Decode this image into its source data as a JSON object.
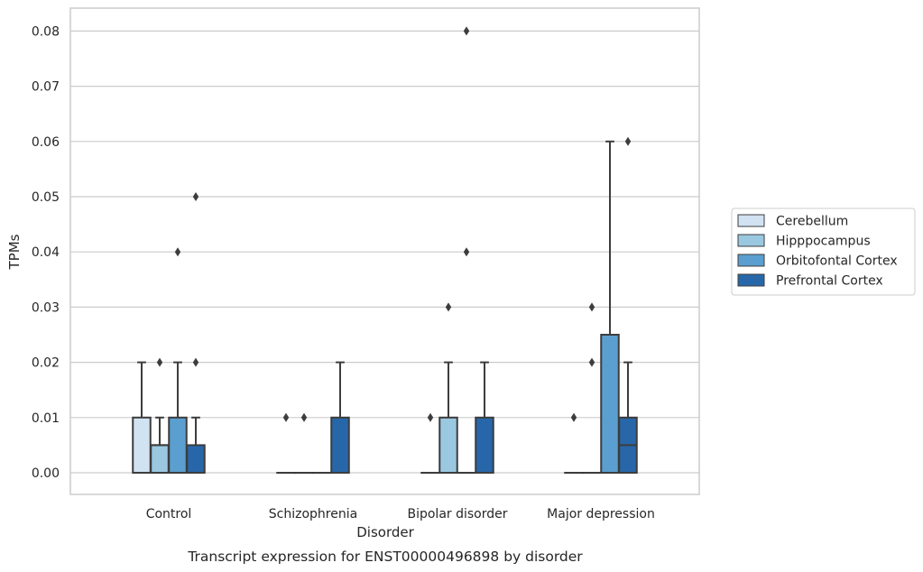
{
  "chart_data": {
    "type": "box",
    "xlabel": "Disorder",
    "ylabel": "TPMs",
    "caption": "Transcript expression for ENST00000496898 by disorder",
    "categories": [
      "Control",
      "Schizophrenia",
      "Bipolar disorder",
      "Major depression"
    ],
    "ylim": [
      -0.004,
      0.084
    ],
    "yticks": [
      0.0,
      0.01,
      0.02,
      0.03,
      0.04,
      0.05,
      0.06,
      0.07,
      0.08
    ],
    "ytick_labels": [
      "0.00",
      "0.01",
      "0.02",
      "0.03",
      "0.04",
      "0.05",
      "0.06",
      "0.07",
      "0.08"
    ],
    "grid": "horizontal",
    "legend_position": "right",
    "series": [
      {
        "name": "Cerebellum",
        "color": "#d1e2f2",
        "boxes": [
          {
            "q1": 0,
            "median": 0,
            "q3": 0.01,
            "whisker_low": 0,
            "whisker_high": 0.02,
            "outliers": []
          },
          {
            "q1": 0,
            "median": 0,
            "q3": 0,
            "whisker_low": 0,
            "whisker_high": 0,
            "outliers": [
              0.01
            ]
          },
          {
            "q1": 0,
            "median": 0,
            "q3": 0,
            "whisker_low": 0,
            "whisker_high": 0,
            "outliers": [
              0.01
            ]
          },
          {
            "q1": 0,
            "median": 0,
            "q3": 0,
            "whisker_low": 0,
            "whisker_high": 0,
            "outliers": [
              0.01
            ]
          }
        ]
      },
      {
        "name": "Hipppocampus",
        "color": "#9ac8e0",
        "boxes": [
          {
            "q1": 0,
            "median": 0.005,
            "q3": 0.005,
            "whisker_low": 0,
            "whisker_high": 0.01,
            "outliers": [
              0.02
            ]
          },
          {
            "q1": 0,
            "median": 0,
            "q3": 0,
            "whisker_low": 0,
            "whisker_high": 0,
            "outliers": [
              0.01
            ]
          },
          {
            "q1": 0,
            "median": 0,
            "q3": 0.01,
            "whisker_low": 0,
            "whisker_high": 0.02,
            "outliers": [
              0.03
            ]
          },
          {
            "q1": 0,
            "median": 0,
            "q3": 0,
            "whisker_low": 0,
            "whisker_high": 0,
            "outliers": [
              0.02,
              0.03
            ]
          }
        ]
      },
      {
        "name": "Orbitofontal Cortex",
        "color": "#5a9fcf",
        "boxes": [
          {
            "q1": 0,
            "median": 0,
            "q3": 0.01,
            "whisker_low": 0,
            "whisker_high": 0.02,
            "outliers": [
              0.04
            ]
          },
          {
            "q1": 0,
            "median": 0,
            "q3": 0,
            "whisker_low": 0,
            "whisker_high": 0,
            "outliers": []
          },
          {
            "q1": 0,
            "median": 0,
            "q3": 0,
            "whisker_low": 0,
            "whisker_high": 0,
            "outliers": [
              0.04,
              0.08
            ]
          },
          {
            "q1": 0,
            "median": 0,
            "q3": 0.025,
            "whisker_low": 0,
            "whisker_high": 0.06,
            "outliers": []
          }
        ]
      },
      {
        "name": "Prefrontal Cortex",
        "color": "#2767a9",
        "boxes": [
          {
            "q1": 0,
            "median": 0,
            "q3": 0.005,
            "whisker_low": 0,
            "whisker_high": 0.01,
            "outliers": [
              0.02,
              0.05
            ]
          },
          {
            "q1": 0,
            "median": 0,
            "q3": 0.01,
            "whisker_low": 0,
            "whisker_high": 0.02,
            "outliers": []
          },
          {
            "q1": 0,
            "median": 0,
            "q3": 0.01,
            "whisker_low": 0,
            "whisker_high": 0.02,
            "outliers": []
          },
          {
            "q1": 0,
            "median": 0.005,
            "q3": 0.01,
            "whisker_low": 0,
            "whisker_high": 0.02,
            "outliers": [
              0.06
            ]
          }
        ]
      }
    ],
    "colors": {
      "grid": "#cccccc",
      "frame": "#cccccc",
      "line": "#3d3d3d",
      "text": "#262626"
    }
  }
}
